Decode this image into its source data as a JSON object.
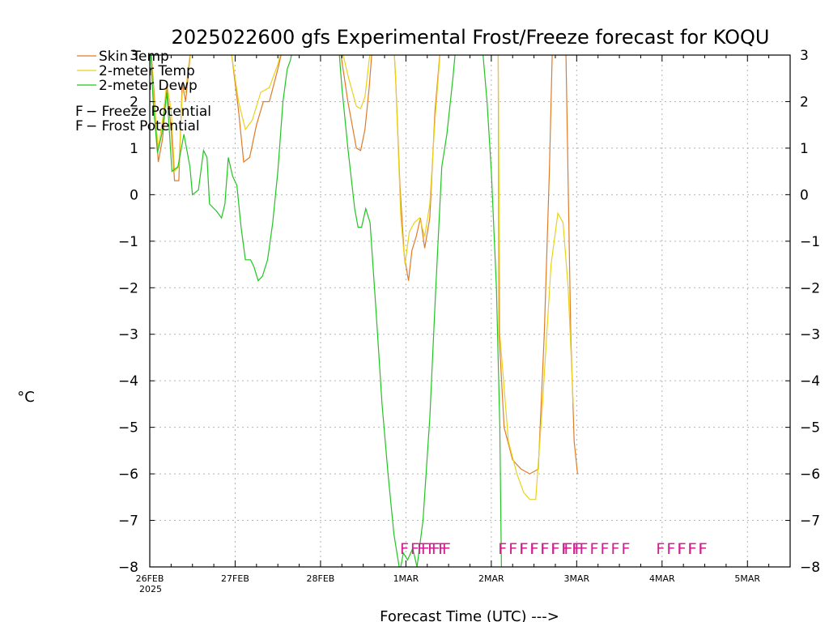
{
  "chart_data": {
    "type": "line",
    "title": "2025022600 gfs Experimental Frost/Freeze forecast for KOQU",
    "xlabel": "Forecast Time (UTC) --->",
    "ylabel": "°C",
    "ylim": [
      -8,
      3
    ],
    "xlim": [
      0,
      7.5
    ],
    "grid": true,
    "yticks": [
      "3",
      "2",
      "1",
      "0",
      "−1",
      "−2",
      "−3",
      "−4",
      "−5",
      "−6",
      "−7",
      "−8"
    ],
    "xticks": [
      {
        "label": "26FEB",
        "x": 0
      },
      {
        "label": "27FEB",
        "x": 1
      },
      {
        "label": "28FEB",
        "x": 2
      },
      {
        "label": "1MAR",
        "x": 3
      },
      {
        "label": "2MAR",
        "x": 4
      },
      {
        "label": "3MAR",
        "x": 5
      },
      {
        "label": "4MAR",
        "x": 6
      },
      {
        "label": "5MAR",
        "x": 7
      }
    ],
    "year_label": "2025",
    "legend": {
      "placement": "top-left",
      "entries": [
        {
          "text": "Skin Temp",
          "color": "#e07b28"
        },
        {
          "text": "2-meter Temp",
          "color": "#e8d21c"
        },
        {
          "text": "2-meter Dewp",
          "color": "#22c422"
        }
      ],
      "markers": [
        {
          "letter": "F",
          "text": " − Freeze Potential",
          "color": "#d02090"
        },
        {
          "letter": "F",
          "text": " − Frost Potential",
          "color": "#4a55e0"
        }
      ]
    },
    "series": [
      {
        "name": "Skin Temp",
        "color": "#e07b28",
        "points": [
          [
            0,
            3.5
          ],
          [
            0.05,
            2.2
          ],
          [
            0.1,
            0.7
          ],
          [
            0.15,
            1.2
          ],
          [
            0.2,
            2.3
          ],
          [
            0.25,
            1.4
          ],
          [
            0.29,
            0.3
          ],
          [
            0.34,
            0.3
          ],
          [
            0.38,
            2.4
          ],
          [
            0.42,
            2.0
          ],
          [
            0.5,
            3.5
          ],
          [
            0.8,
            3.5
          ],
          [
            0.96,
            3.0
          ],
          [
            1.04,
            1.8
          ],
          [
            1.1,
            0.7
          ],
          [
            1.17,
            0.8
          ],
          [
            1.25,
            1.5
          ],
          [
            1.33,
            2.0
          ],
          [
            1.4,
            2.0
          ],
          [
            1.5,
            2.7
          ],
          [
            1.6,
            3.5
          ],
          [
            2.2,
            3.5
          ],
          [
            2.32,
            2.0
          ],
          [
            2.42,
            1.0
          ],
          [
            2.47,
            0.95
          ],
          [
            2.52,
            1.4
          ],
          [
            2.57,
            2.3
          ],
          [
            2.62,
            3.5
          ],
          [
            2.85,
            3.5
          ],
          [
            2.88,
            2.5
          ],
          [
            2.93,
            0.2
          ],
          [
            2.98,
            -1.3
          ],
          [
            3.03,
            -1.85
          ],
          [
            3.07,
            -1.2
          ],
          [
            3.12,
            -0.9
          ],
          [
            3.17,
            -0.5
          ],
          [
            3.22,
            -1.15
          ],
          [
            3.28,
            -0.5
          ],
          [
            3.34,
            1.8
          ],
          [
            3.42,
            3.5
          ],
          [
            4.08,
            3.5
          ],
          [
            4.09,
            -3.0
          ],
          [
            4.15,
            -5.0
          ],
          [
            4.25,
            -5.7
          ],
          [
            4.35,
            -5.9
          ],
          [
            4.45,
            -6.0
          ],
          [
            4.55,
            -5.9
          ],
          [
            4.62,
            -3.0
          ],
          [
            4.68,
            0.5
          ],
          [
            4.72,
            3.5
          ],
          [
            4.87,
            3.5
          ],
          [
            4.93,
            -3.0
          ],
          [
            4.97,
            -5.3
          ],
          [
            5.01,
            -6.0
          ]
        ]
      },
      {
        "name": "2-meter Temp",
        "color": "#e8d21c",
        "points": [
          [
            0,
            3.5
          ],
          [
            0.05,
            2.0
          ],
          [
            0.1,
            1.0
          ],
          [
            0.15,
            1.6
          ],
          [
            0.2,
            2.4
          ],
          [
            0.25,
            1.8
          ],
          [
            0.29,
            0.5
          ],
          [
            0.34,
            0.6
          ],
          [
            0.38,
            2.2
          ],
          [
            0.42,
            2.2
          ],
          [
            0.5,
            3.5
          ],
          [
            0.82,
            3.5
          ],
          [
            0.96,
            3.0
          ],
          [
            1.04,
            2.0
          ],
          [
            1.12,
            1.4
          ],
          [
            1.2,
            1.6
          ],
          [
            1.3,
            2.2
          ],
          [
            1.4,
            2.3
          ],
          [
            1.5,
            2.8
          ],
          [
            1.6,
            3.5
          ],
          [
            2.2,
            3.5
          ],
          [
            2.33,
            2.5
          ],
          [
            2.42,
            1.9
          ],
          [
            2.47,
            1.85
          ],
          [
            2.52,
            2.1
          ],
          [
            2.57,
            2.9
          ],
          [
            2.62,
            3.5
          ],
          [
            2.85,
            3.5
          ],
          [
            2.88,
            2.5
          ],
          [
            2.94,
            -0.5
          ],
          [
            2.99,
            -1.5
          ],
          [
            3.04,
            -0.8
          ],
          [
            3.1,
            -0.6
          ],
          [
            3.16,
            -0.5
          ],
          [
            3.22,
            -0.9
          ],
          [
            3.28,
            -0.2
          ],
          [
            3.34,
            1.6
          ],
          [
            3.42,
            3.5
          ],
          [
            4.08,
            3.5
          ],
          [
            4.1,
            -3.0
          ],
          [
            4.2,
            -5.3
          ],
          [
            4.3,
            -6.0
          ],
          [
            4.38,
            -6.4
          ],
          [
            4.45,
            -6.55
          ],
          [
            4.52,
            -6.55
          ],
          [
            4.6,
            -4.5
          ],
          [
            4.7,
            -1.5
          ],
          [
            4.78,
            -0.4
          ],
          [
            4.84,
            -0.6
          ],
          [
            4.9,
            -2.0
          ],
          [
            4.96,
            -4.5
          ]
        ]
      },
      {
        "name": "2-meter Dewp",
        "color": "#22c422",
        "points": [
          [
            0,
            3.5
          ],
          [
            0.04,
            2.0
          ],
          [
            0.09,
            0.9
          ],
          [
            0.14,
            1.3
          ],
          [
            0.2,
            2.2
          ],
          [
            0.26,
            0.5
          ],
          [
            0.33,
            0.6
          ],
          [
            0.4,
            1.3
          ],
          [
            0.47,
            0.6
          ],
          [
            0.5,
            0.0
          ],
          [
            0.57,
            0.1
          ],
          [
            0.63,
            0.95
          ],
          [
            0.67,
            0.8
          ],
          [
            0.7,
            -0.2
          ],
          [
            0.78,
            -0.35
          ],
          [
            0.84,
            -0.5
          ],
          [
            0.88,
            -0.2
          ],
          [
            0.92,
            0.8
          ],
          [
            0.97,
            0.4
          ],
          [
            1.02,
            0.2
          ],
          [
            1.07,
            -0.7
          ],
          [
            1.12,
            -1.4
          ],
          [
            1.18,
            -1.4
          ],
          [
            1.22,
            -1.55
          ],
          [
            1.27,
            -1.85
          ],
          [
            1.32,
            -1.75
          ],
          [
            1.38,
            -1.4
          ],
          [
            1.44,
            -0.6
          ],
          [
            1.5,
            0.5
          ],
          [
            1.56,
            2.0
          ],
          [
            1.61,
            2.7
          ],
          [
            1.65,
            2.9
          ],
          [
            1.7,
            3.5
          ],
          [
            2.2,
            3.5
          ],
          [
            2.25,
            2.3
          ],
          [
            2.32,
            1.0
          ],
          [
            2.4,
            -0.3
          ],
          [
            2.44,
            -0.7
          ],
          [
            2.48,
            -0.7
          ],
          [
            2.53,
            -0.3
          ],
          [
            2.58,
            -0.6
          ],
          [
            2.65,
            -2.5
          ],
          [
            2.72,
            -4.5
          ],
          [
            2.79,
            -6.0
          ],
          [
            2.86,
            -7.3
          ],
          [
            2.93,
            -8.1
          ],
          [
            2.97,
            -7.7
          ],
          [
            3.02,
            -7.85
          ],
          [
            3.08,
            -7.6
          ],
          [
            3.13,
            -8.0
          ],
          [
            3.2,
            -7.0
          ],
          [
            3.28,
            -4.8
          ],
          [
            3.35,
            -2.0
          ],
          [
            3.42,
            0.6
          ],
          [
            3.48,
            1.3
          ],
          [
            3.55,
            2.5
          ],
          [
            3.6,
            3.5
          ],
          [
            3.88,
            3.5
          ],
          [
            3.95,
            2.0
          ],
          [
            4.0,
            0.5
          ],
          [
            4.06,
            -2.0
          ],
          [
            4.1,
            -5.0
          ],
          [
            4.12,
            -8.2
          ]
        ]
      }
    ],
    "freeze_potential": [
      {
        "x": 2.93,
        "count": 5
      },
      {
        "x": 3.13,
        "count": 3
      },
      {
        "x": 4.08,
        "count": 8
      },
      {
        "x": 4.33,
        "count": 6
      },
      {
        "x": 4.85,
        "count": 2
      },
      {
        "x": 5.03,
        "count": 5
      },
      {
        "x": 5.93,
        "count": 5
      },
      {
        "x": 6.18,
        "count": 3
      }
    ],
    "freeze_text": {
      "group1": "FFFFF",
      "group2": "FFFFFFFFFFFFFF",
      "group3": "FFFFFFF",
      "group4": "FFFFF"
    }
  }
}
